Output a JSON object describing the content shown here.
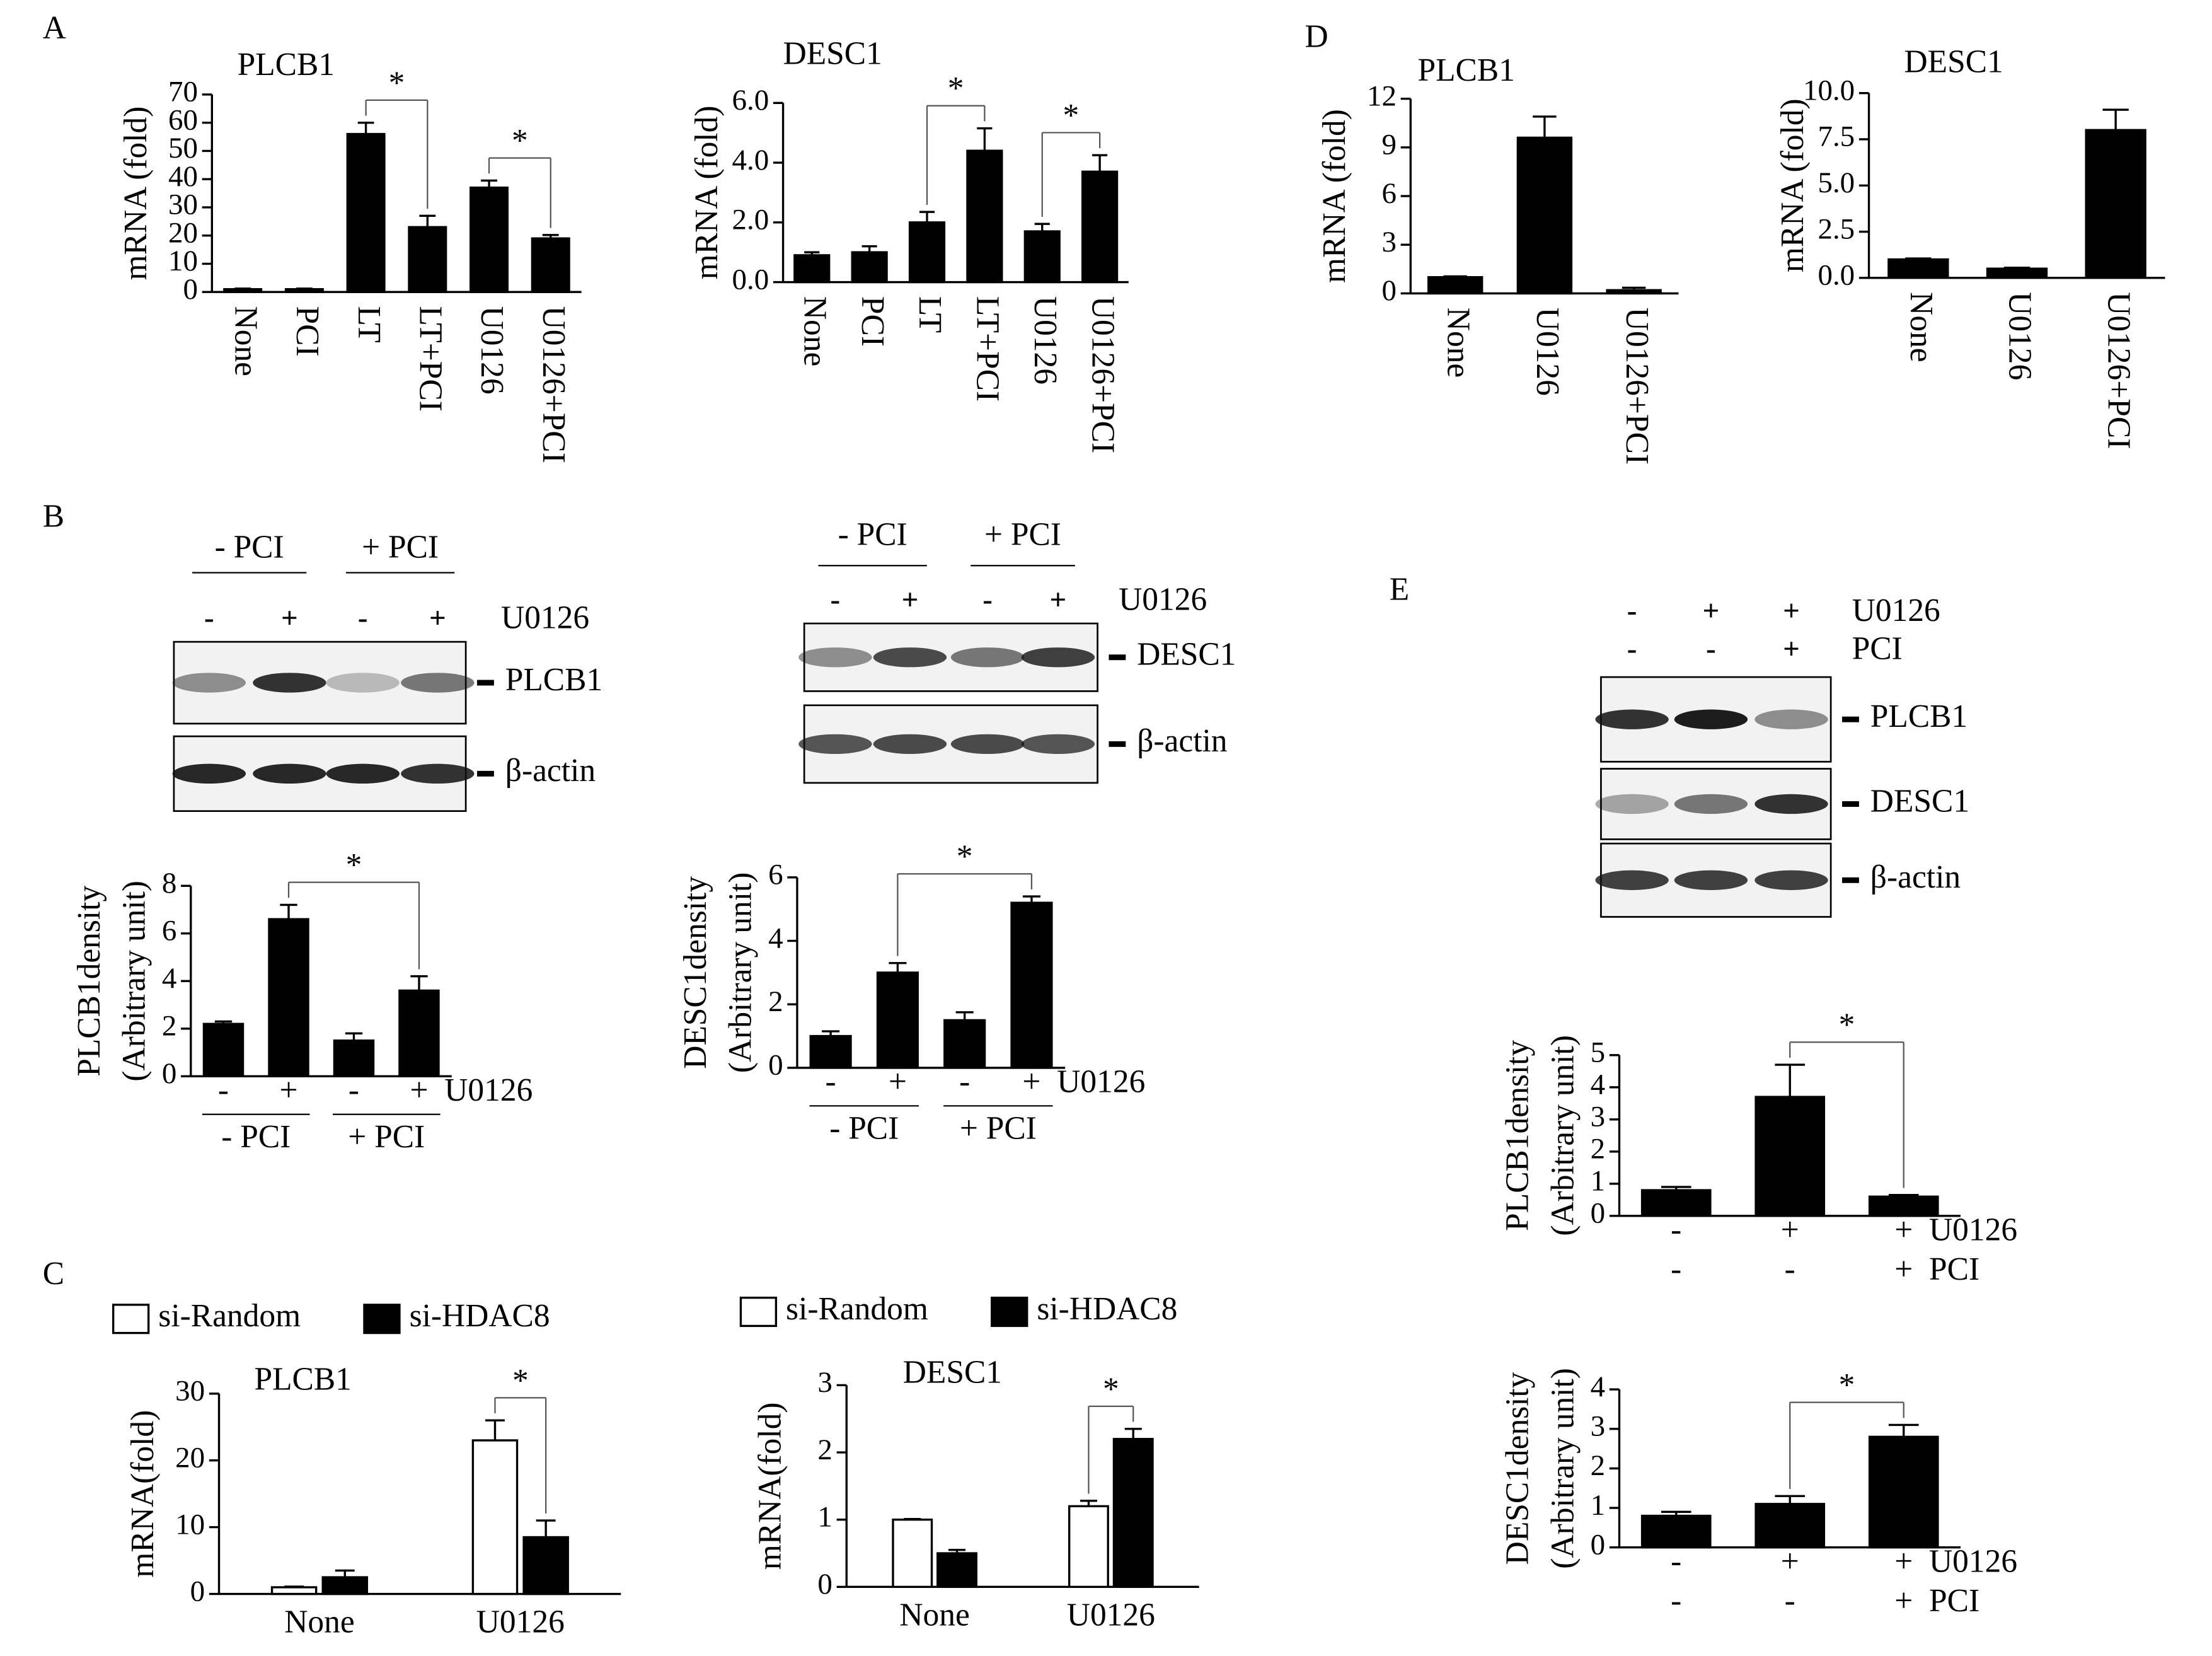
{
  "panels": [
    "A",
    "B",
    "C",
    "D",
    "E"
  ],
  "blots": [
    {
      "groups": [
        "- PCI",
        "+ PCI"
      ],
      "rows": [
        {
          "name": "U0126",
          "labels": [
            "-",
            "+",
            "-",
            "+"
          ]
        }
      ],
      "bands": [
        "PLCB1",
        "β-actin"
      ]
    },
    {
      "groups": [
        "- PCI",
        "+ PCI"
      ],
      "rows": [
        {
          "name": "U0126",
          "labels": [
            "-",
            "+",
            "-",
            "+"
          ]
        }
      ],
      "bands": [
        "DESC1",
        "β-actin"
      ]
    },
    {
      "rows": [
        {
          "name": "U0126",
          "labels": [
            "-",
            "+",
            "+"
          ]
        },
        {
          "name": "PCI",
          "labels": [
            "-",
            "-",
            "+"
          ]
        }
      ],
      "bands": [
        "PLCB1",
        "DESC1",
        "β-actin"
      ]
    }
  ],
  "chart_data": [
    {
      "type": "bar",
      "title": "PLCB1",
      "y_label": "mRNA (fold)",
      "categories": [
        "None",
        "PCI",
        "LT",
        "LT+PCI",
        "U0126",
        "U0126+PCI"
      ],
      "values": [
        1,
        1,
        56,
        23,
        37,
        19
      ],
      "errors": [
        0.2,
        0.2,
        4,
        4,
        2.5,
        1.2
      ],
      "color": "#000000",
      "ylim": [
        0,
        70
      ],
      "yticks": [
        0,
        10,
        20,
        30,
        40,
        50,
        60,
        70
      ],
      "annotations": [
        {
          "text": "*",
          "between": [
            2,
            3
          ]
        },
        {
          "text": "*",
          "between": [
            4,
            5
          ]
        }
      ]
    },
    {
      "type": "bar",
      "title": "DESC1",
      "y_label": "mRNA (fold)",
      "categories": [
        "None",
        "PCI",
        "LT",
        "LT+PCI",
        "U0126",
        "U0126+PCI"
      ],
      "values": [
        0.9,
        1.0,
        2.0,
        4.4,
        1.7,
        3.7
      ],
      "errors": [
        0.1,
        0.2,
        0.35,
        0.75,
        0.25,
        0.55
      ],
      "color": "#000000",
      "ylim": [
        0,
        6
      ],
      "yticks": [
        {
          "value": 0,
          "label": "0.0"
        },
        {
          "value": 2,
          "label": "2.0"
        },
        {
          "value": 4,
          "label": "4.0"
        },
        {
          "value": 6,
          "label": "6.0"
        }
      ],
      "annotations": [
        {
          "text": "*",
          "between": [
            2,
            3
          ]
        },
        {
          "text": "*",
          "between": [
            4,
            5
          ]
        }
      ]
    },
    {
      "type": "bar",
      "title": "PLCB1",
      "y_label": "mRNA (fold)",
      "categories": [
        "None",
        "U0126",
        "U0126+PCI"
      ],
      "values": [
        1,
        9.6,
        0.2
      ],
      "errors": [
        0.05,
        1.3,
        0.15
      ],
      "color": "#000000",
      "ylim": [
        0,
        12
      ],
      "yticks": [
        0,
        3,
        6,
        9,
        12
      ]
    },
    {
      "type": "bar",
      "title": "DESC1",
      "y_label": "mRNA (fold)",
      "categories": [
        "None",
        "U0126",
        "U0126+PCI"
      ],
      "values": [
        1,
        0.5,
        8
      ],
      "errors": [
        0.05,
        0.05,
        1.1
      ],
      "color": "#000000",
      "ylim": [
        0,
        10
      ],
      "yticks": [
        {
          "value": 0,
          "label": "0.0"
        },
        {
          "value": 2.5,
          "label": "2.5"
        },
        {
          "value": 5,
          "label": "5.0"
        },
        {
          "value": 7.5,
          "label": "7.5"
        },
        {
          "value": 10,
          "label": "10.0"
        }
      ]
    },
    {
      "type": "bar",
      "y_label": [
        "PLCB1density",
        "(Arbitrary unit)"
      ],
      "category_rows": [
        {
          "name": "U0126",
          "labels": [
            "-",
            "+",
            "-",
            "+"
          ]
        }
      ],
      "groups": [
        "- PCI",
        "+ PCI"
      ],
      "values": [
        2.2,
        6.6,
        1.5,
        3.6
      ],
      "errors": [
        0.1,
        0.6,
        0.3,
        0.6
      ],
      "color": "#000000",
      "ylim": [
        0,
        8
      ],
      "yticks": [
        0,
        2,
        4,
        6,
        8
      ],
      "annotations": [
        {
          "text": "*",
          "between": [
            1,
            3
          ]
        }
      ]
    },
    {
      "type": "bar",
      "y_label": [
        "DESC1density",
        "(Arbitrary unit)"
      ],
      "category_rows": [
        {
          "name": "U0126",
          "labels": [
            "-",
            "+",
            "-",
            "+"
          ]
        }
      ],
      "groups": [
        "- PCI",
        "+ PCI"
      ],
      "values": [
        1.0,
        3.0,
        1.5,
        5.2
      ],
      "errors": [
        0.15,
        0.3,
        0.25,
        0.2
      ],
      "color": "#000000",
      "ylim": [
        0,
        6
      ],
      "yticks": [
        0,
        2,
        4,
        6
      ],
      "annotations": [
        {
          "text": "*",
          "between": [
            1,
            3
          ]
        }
      ]
    },
    {
      "type": "grouped_bar",
      "title": "PLCB1",
      "y_label": "mRNA(fold)",
      "categories": [
        "None",
        "U0126"
      ],
      "series": [
        {
          "name": "si-Random",
          "color": "#ffffff",
          "values": [
            1,
            23
          ],
          "errors": [
            0.1,
            3
          ]
        },
        {
          "name": "si-HDAC8",
          "color": "#000000",
          "values": [
            2.5,
            8.5
          ],
          "errors": [
            1,
            2.5
          ]
        }
      ],
      "ylim": [
        0,
        30
      ],
      "yticks": [
        0,
        10,
        20,
        30
      ],
      "annotations": [
        {
          "text": "*",
          "between": [
            [
              0,
              1
            ],
            [
              1,
              1
            ]
          ]
        }
      ]
    },
    {
      "type": "grouped_bar",
      "title": "DESC1",
      "y_label": "mRNA(fold)",
      "categories": [
        "None",
        "U0126"
      ],
      "series": [
        {
          "name": "si-Random",
          "color": "#ffffff",
          "values": [
            1,
            1.2
          ],
          "errors": [
            0.01,
            0.08
          ]
        },
        {
          "name": "si-HDAC8",
          "color": "#000000",
          "values": [
            0.5,
            2.2
          ],
          "errors": [
            0.05,
            0.15
          ]
        }
      ],
      "ylim": [
        0,
        3
      ],
      "yticks": [
        0,
        1,
        2,
        3
      ],
      "annotations": [
        {
          "text": "*",
          "between": [
            [
              0,
              1
            ],
            [
              1,
              1
            ]
          ]
        }
      ]
    },
    {
      "type": "bar",
      "y_label": [
        "PLCB1density",
        "(Arbitrary unit)"
      ],
      "category_rows": [
        {
          "name": "U0126",
          "labels": [
            "-",
            "+",
            "+"
          ]
        },
        {
          "name": "PCI",
          "labels": [
            "-",
            "-",
            "+"
          ]
        }
      ],
      "values": [
        0.8,
        3.7,
        0.6
      ],
      "errors": [
        0.1,
        1.0,
        0.05
      ],
      "color": "#000000",
      "ylim": [
        0,
        5
      ],
      "yticks": [
        0,
        1,
        2,
        3,
        4,
        5
      ],
      "annotations": [
        {
          "text": "*",
          "between": [
            1,
            2
          ]
        }
      ]
    },
    {
      "type": "bar",
      "y_label": [
        "DESC1density",
        "(Arbitrary unit)"
      ],
      "category_rows": [
        {
          "name": "U0126",
          "labels": [
            "-",
            "+",
            "+"
          ]
        },
        {
          "name": "PCI",
          "labels": [
            "-",
            "-",
            "+"
          ]
        }
      ],
      "values": [
        0.8,
        1.1,
        2.8
      ],
      "errors": [
        0.1,
        0.2,
        0.3
      ],
      "color": "#000000",
      "ylim": [
        0,
        4
      ],
      "yticks": [
        0,
        1,
        2,
        3,
        4
      ],
      "annotations": [
        {
          "text": "*",
          "between": [
            1,
            2
          ]
        }
      ]
    }
  ]
}
